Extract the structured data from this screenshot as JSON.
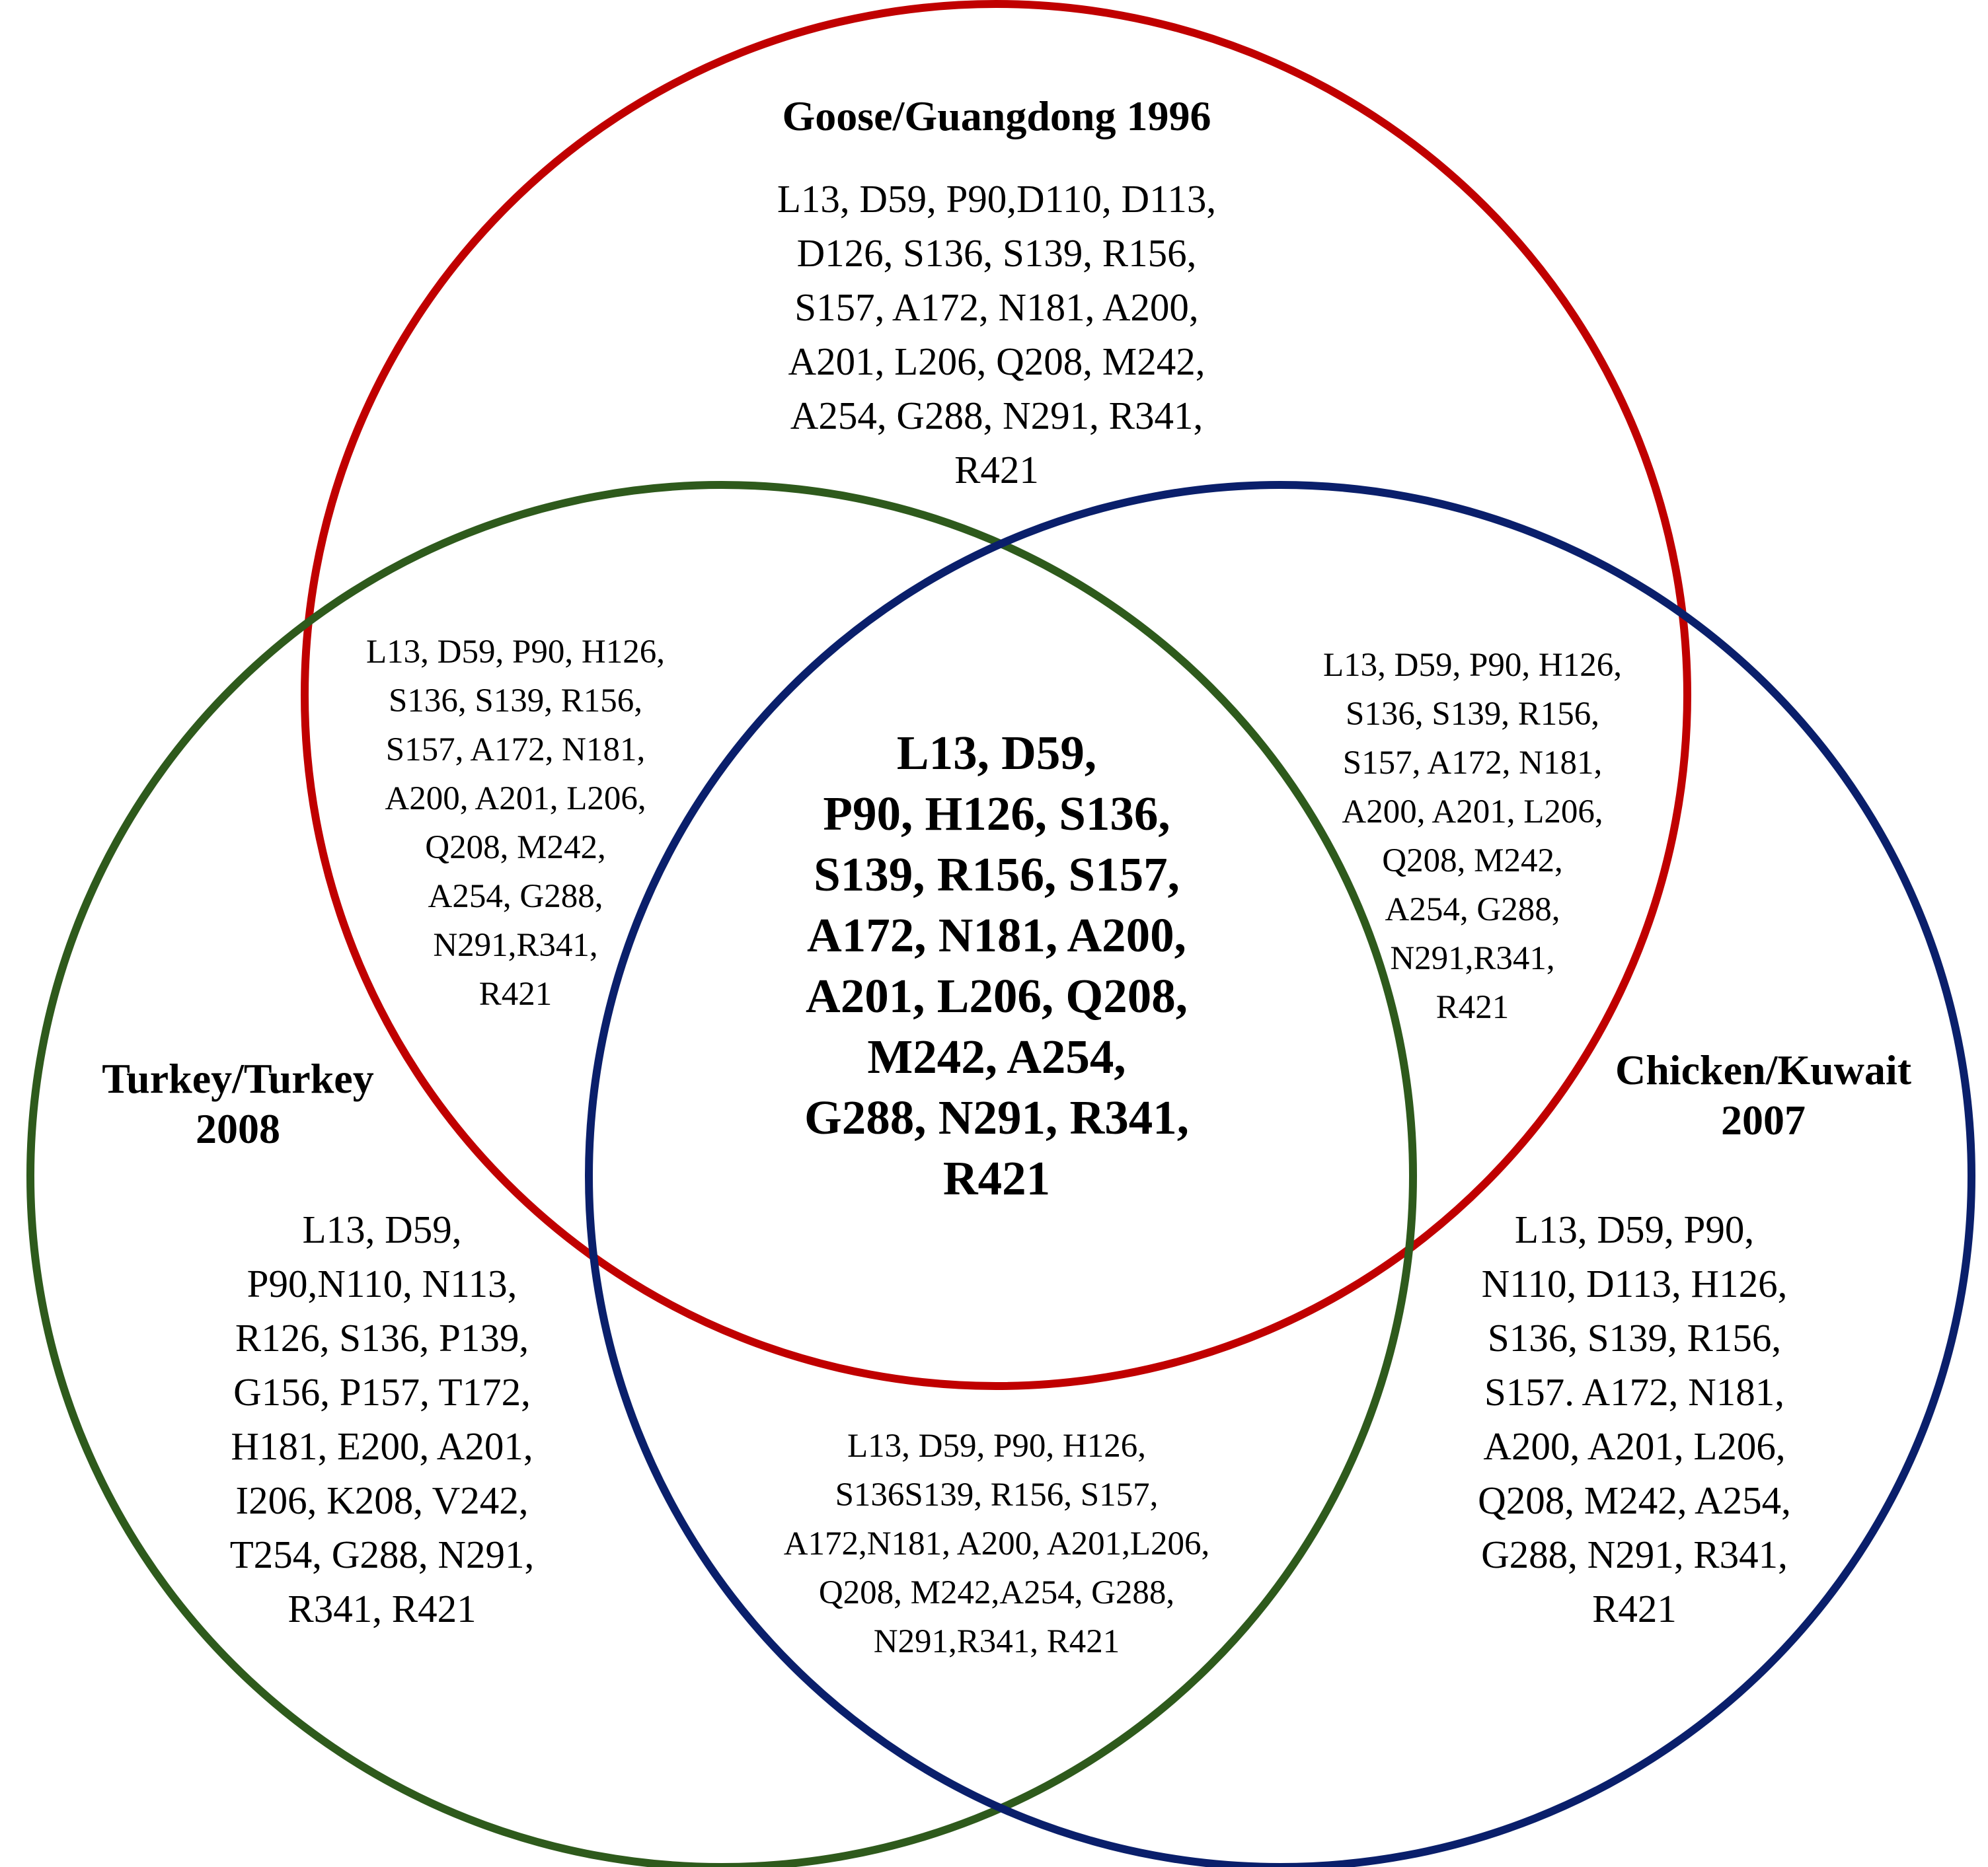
{
  "sets": [
    {
      "id": "goose",
      "color": "#c00000"
    },
    {
      "id": "turkey",
      "color": "#2e5a1c"
    },
    {
      "id": "chicken",
      "color": "#0a1f6b"
    }
  ],
  "labels": {
    "goose": "Goose/Guangdong 1996",
    "turkey": [
      "Turkey/Turkey",
      "2008"
    ],
    "chicken": [
      "Chicken/Kuwait",
      "2007"
    ]
  },
  "regions": {
    "goose_only": [
      "L13, D59, P90,D110, D113,",
      "D126, S136, S139, R156,",
      "S157, A172, N181, A200,",
      "A201, L206, Q208, M242,",
      "A254, G288, N291, R341,",
      "R421"
    ],
    "goose_turkey": [
      "L13, D59, P90, H126,",
      "S136, S139, R156,",
      "S157, A172, N181,",
      "A200, A201, L206,",
      "Q208, M242,",
      "A254, G288,",
      "N291,R341,",
      "R421"
    ],
    "goose_chicken": [
      "L13, D59, P90, H126,",
      "S136, S139, R156,",
      "S157, A172, N181,",
      "A200, A201, L206,",
      "Q208, M242,",
      "A254, G288,",
      "N291,R341,",
      "R421"
    ],
    "all_three": [
      "L13, D59,",
      "P90, H126, S136,",
      "S139, R156, S157,",
      "A172, N181, A200,",
      "A201, L206, Q208,",
      "M242, A254,",
      "G288, N291, R341,",
      "R421"
    ],
    "turkey_only": [
      "L13, D59,",
      "P90,N110, N113,",
      "R126, S136, P139,",
      "G156, P157, T172,",
      "H181, E200, A201,",
      "I206, K208, V242,",
      "T254, G288, N291,",
      "R341, R421"
    ],
    "turkey_chicken": [
      "L13, D59, P90, H126,",
      "S136S139, R156, S157,",
      "A172,N181, A200, A201,L206,",
      "Q208, M242,A254, G288,",
      "N291,R341, R421"
    ],
    "chicken_only": [
      "L13, D59, P90,",
      "N110, D113, H126,",
      "S136, S139, R156,",
      "S157. A172, N181,",
      "A200, A201, L206,",
      "Q208, M242, A254,",
      "G288, N291, R341,",
      "R421"
    ]
  }
}
